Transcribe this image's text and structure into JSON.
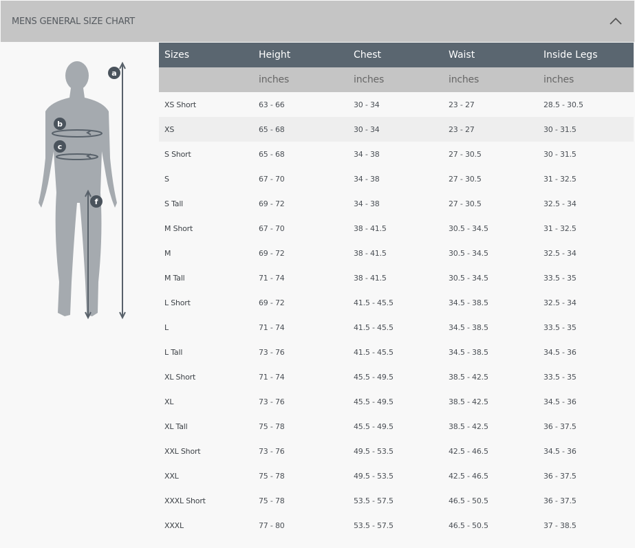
{
  "header": {
    "title": "MENS GENERAL SIZE CHART",
    "collapse_icon": "chevron-up-icon"
  },
  "figure": {
    "labels": [
      "a",
      "b",
      "c",
      "f"
    ]
  },
  "table": {
    "columns": [
      "Sizes",
      "Height",
      "Chest",
      "Waist",
      "Inside Legs"
    ],
    "units": [
      "",
      "inches",
      "inches",
      "inches",
      "inches"
    ],
    "highlighted_row": "XS",
    "rows": [
      [
        "XS Short",
        "63 - 66",
        "30 - 34",
        "23 - 27",
        "28.5 - 30.5"
      ],
      [
        "XS",
        "65 - 68",
        "30 - 34",
        "23 - 27",
        "30 - 31.5"
      ],
      [
        "S Short",
        "65 - 68",
        "34 - 38",
        "27 - 30.5",
        "30 - 31.5"
      ],
      [
        "S",
        "67 - 70",
        "34 - 38",
        "27 - 30.5",
        "31 - 32.5"
      ],
      [
        "S Tall",
        "69 - 72",
        "34 - 38",
        "27 - 30.5",
        "32.5 - 34"
      ],
      [
        "M Short",
        "67 - 70",
        "38 - 41.5",
        "30.5 - 34.5",
        "31 - 32.5"
      ],
      [
        "M",
        "69 - 72",
        "38 - 41.5",
        "30.5 - 34.5",
        "32.5 - 34"
      ],
      [
        "M Tall",
        "71 - 74",
        "38 - 41.5",
        "30.5 - 34.5",
        "33.5 - 35"
      ],
      [
        "L Short",
        "69 - 72",
        "41.5 - 45.5",
        "34.5 - 38.5",
        "32.5 - 34"
      ],
      [
        "L",
        "71 - 74",
        "41.5 - 45.5",
        "34.5 - 38.5",
        "33.5 - 35"
      ],
      [
        "L Tall",
        "73 - 76",
        "41.5 - 45.5",
        "34.5 - 38.5",
        "34.5 - 36"
      ],
      [
        "XL Short",
        "71 - 74",
        "45.5 - 49.5",
        "38.5 - 42.5",
        "33.5 - 35"
      ],
      [
        "XL",
        "73 - 76",
        "45.5 - 49.5",
        "38.5 - 42.5",
        "34.5 - 36"
      ],
      [
        "XL Tall",
        "75 - 78",
        "45.5 - 49.5",
        "38.5 - 42.5",
        "36 - 37.5"
      ],
      [
        "XXL Short",
        "73 - 76",
        "49.5 - 53.5",
        "42.5 - 46.5",
        "34.5 - 36"
      ],
      [
        "XXL",
        "75 - 78",
        "49.5 - 53.5",
        "42.5 - 46.5",
        "36 - 37.5"
      ],
      [
        "XXXL Short",
        "75 - 78",
        "53.5 - 57.5",
        "46.5 - 50.5",
        "36 - 37.5"
      ],
      [
        "XXXL",
        "77 - 80",
        "53.5 - 57.5",
        "46.5 - 50.5",
        "37 - 38.5"
      ]
    ]
  }
}
